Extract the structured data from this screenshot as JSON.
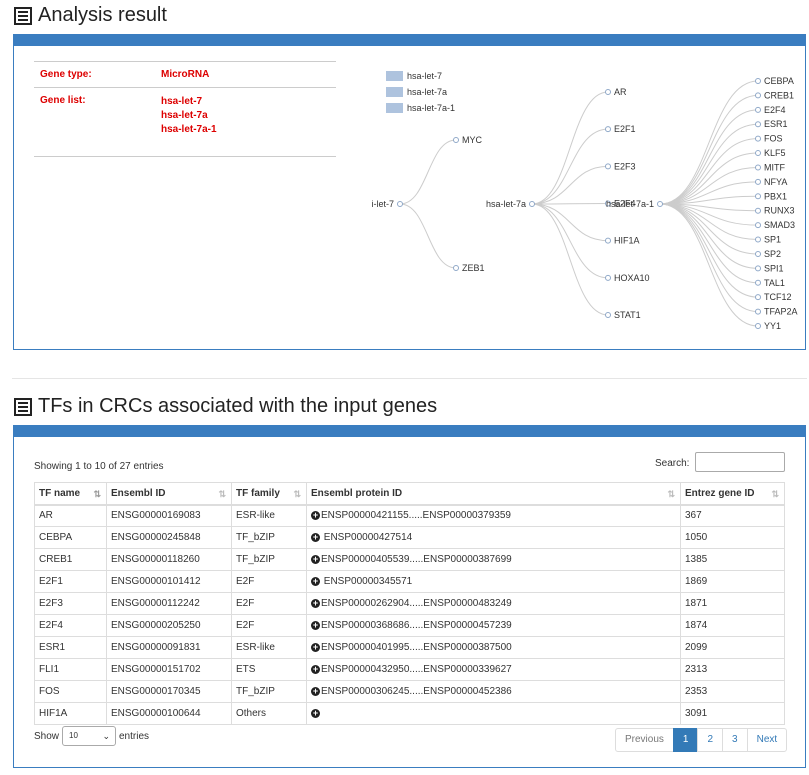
{
  "analysis": {
    "title": "Analysis result",
    "gene_type_label": "Gene type:",
    "gene_type_value": "MicroRNA",
    "gene_list_label": "Gene list:",
    "gene_list": [
      "hsa-let-7",
      "hsa-let-7a",
      "hsa-let-7a-1"
    ]
  },
  "tree": {
    "legend": [
      "hsa-let-7",
      "hsa-let-7a",
      "hsa-let-7a-1"
    ],
    "legend_color": "#aec3de",
    "link_color": "#cccccc",
    "node_stroke": "#8fa8c8",
    "roots": [
      {
        "name": "hsa-let-7",
        "display": "i-let-7",
        "children": [
          "MYC",
          "ZEB1"
        ]
      },
      {
        "name": "hsa-let-7a",
        "display": "hsa-let-7a",
        "children": [
          "AR",
          "E2F1",
          "E2F3",
          "E2F4",
          "HIF1A",
          "HOXA10",
          "STAT1"
        ]
      },
      {
        "name": "hsa-let-7a-1",
        "display": "hsa-let-7a-1",
        "children": [
          "CEBPA",
          "CREB1",
          "E2F4",
          "ESR1",
          "FOS",
          "KLF5",
          "MITF",
          "NFYA",
          "PBX1",
          "RUNX3",
          "SMAD3",
          "SP1",
          "SP2",
          "SPI1",
          "TAL1",
          "TCF12",
          "TFAP2A",
          "YY1"
        ]
      }
    ]
  },
  "tfs": {
    "title": "TFs in CRCs associated with the input genes",
    "showing": "Showing 1 to 10 of 27 entries",
    "search_label": "Search:",
    "search_value": "",
    "columns": [
      "TF name",
      "Ensembl ID",
      "TF family",
      "Ensembl protein ID",
      "Entrez gene ID"
    ],
    "rows": [
      {
        "tf": "AR",
        "ensembl": "ENSG00000169083",
        "family": "ESR-like",
        "protein": "ENSP00000421155.....ENSP00000379359",
        "entrez": "367"
      },
      {
        "tf": "CEBPA",
        "ensembl": "ENSG00000245848",
        "family": "TF_bZIP",
        "protein": " ENSP00000427514",
        "entrez": "1050"
      },
      {
        "tf": "CREB1",
        "ensembl": "ENSG00000118260",
        "family": "TF_bZIP",
        "protein": "ENSP00000405539.....ENSP00000387699",
        "entrez": "1385"
      },
      {
        "tf": "E2F1",
        "ensembl": "ENSG00000101412",
        "family": "E2F",
        "protein": " ENSP00000345571",
        "entrez": "1869"
      },
      {
        "tf": "E2F3",
        "ensembl": "ENSG00000112242",
        "family": "E2F",
        "protein": "ENSP00000262904.....ENSP00000483249",
        "entrez": "1871"
      },
      {
        "tf": "E2F4",
        "ensembl": "ENSG00000205250",
        "family": "E2F",
        "protein": "ENSP00000368686.....ENSP00000457239",
        "entrez": "1874"
      },
      {
        "tf": "ESR1",
        "ensembl": "ENSG00000091831",
        "family": "ESR-like",
        "protein": "ENSP00000401995.....ENSP00000387500",
        "entrez": "2099"
      },
      {
        "tf": "FLI1",
        "ensembl": "ENSG00000151702",
        "family": "ETS",
        "protein": "ENSP00000432950.....ENSP00000339627",
        "entrez": "2313"
      },
      {
        "tf": "FOS",
        "ensembl": "ENSG00000170345",
        "family": "TF_bZIP",
        "protein": "ENSP00000306245.....ENSP00000452386",
        "entrez": "2353"
      },
      {
        "tf": "HIF1A",
        "ensembl": "ENSG00000100644",
        "family": "Others",
        "protein": "",
        "entrez": "3091"
      }
    ],
    "show_label": "Show",
    "show_value": "10",
    "entries_label": "entries",
    "pager": {
      "previous": "Previous",
      "pages": [
        "1",
        "2",
        "3"
      ],
      "active": "1",
      "next": "Next"
    }
  },
  "colors": {
    "panel": "#3a7dc0",
    "gene_red": "#dd0000",
    "pager_active": "#337ab7"
  }
}
